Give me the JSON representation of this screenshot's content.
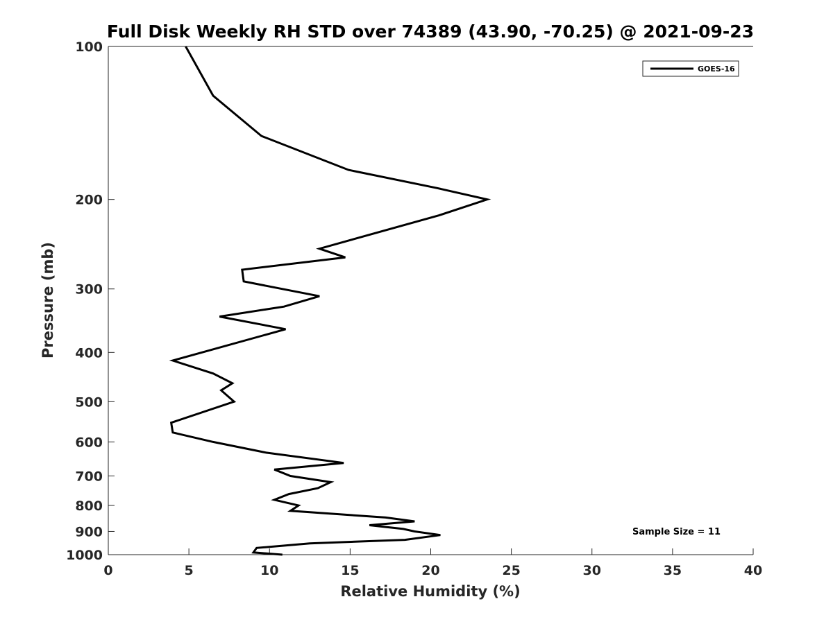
{
  "chart_data": {
    "type": "line",
    "title": "Full Disk Weekly RH STD over 74389 (43.90, -70.25) @ 2021-09-23",
    "xlabel": "Relative Humidity (%)",
    "ylabel": "Pressure (mb)",
    "xlim": [
      0,
      40
    ],
    "ylim": [
      100,
      1000
    ],
    "yscale": "log",
    "y_reversed": true,
    "xticks": [
      "0",
      "5",
      "10",
      "15",
      "20",
      "25",
      "30",
      "35",
      "40"
    ],
    "yticks": [
      "100",
      "200",
      "300",
      "400",
      "500",
      "600",
      "700",
      "800",
      "900",
      "1000"
    ],
    "grid": false,
    "legend_position": "top-right",
    "annotation": "Sample Size = 11",
    "series": [
      {
        "name": "GOES-16",
        "color": "#000000",
        "points": [
          [
            4.8,
            100
          ],
          [
            6.5,
            125
          ],
          [
            9.5,
            150
          ],
          [
            14.9,
            175
          ],
          [
            20.4,
            190
          ],
          [
            23.5,
            200
          ],
          [
            20.5,
            215
          ],
          [
            13.1,
            250
          ],
          [
            14.7,
            260
          ],
          [
            8.3,
            275
          ],
          [
            8.4,
            290
          ],
          [
            13.1,
            310
          ],
          [
            10.9,
            325
          ],
          [
            6.9,
            340
          ],
          [
            11.0,
            360
          ],
          [
            4.0,
            415
          ],
          [
            6.5,
            440
          ],
          [
            7.7,
            460
          ],
          [
            7.0,
            475
          ],
          [
            7.8,
            500
          ],
          [
            3.9,
            550
          ],
          [
            4.0,
            575
          ],
          [
            6.5,
            600
          ],
          [
            9.8,
            630
          ],
          [
            14.6,
            660
          ],
          [
            10.3,
            680
          ],
          [
            11.3,
            700
          ],
          [
            13.8,
            720
          ],
          [
            13.0,
            740
          ],
          [
            11.2,
            760
          ],
          [
            10.3,
            780
          ],
          [
            11.8,
            800
          ],
          [
            11.3,
            820
          ],
          [
            17.2,
            845
          ],
          [
            19.0,
            860
          ],
          [
            16.2,
            875
          ],
          [
            18.3,
            890
          ],
          [
            19.0,
            900
          ],
          [
            20.6,
            915
          ],
          [
            18.4,
            935
          ],
          [
            12.5,
            950
          ],
          [
            9.2,
            970
          ],
          [
            9.0,
            990
          ],
          [
            10.8,
            1000
          ]
        ]
      }
    ]
  }
}
